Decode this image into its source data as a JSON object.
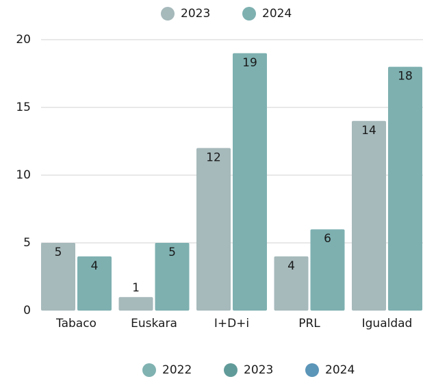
{
  "chart_data": {
    "type": "bar",
    "categories": [
      "Tabaco",
      "Euskara",
      "I+D+i",
      "PRL",
      "Igualdad"
    ],
    "series": [
      {
        "name": "2023",
        "color": "#a6b9bb",
        "values": [
          5,
          1,
          12,
          4,
          14
        ]
      },
      {
        "name": "2024",
        "color": "#7eb0b0",
        "values": [
          4,
          5,
          19,
          6,
          18
        ]
      }
    ],
    "legend2": [
      {
        "name": "2022",
        "color": "#80b2b1"
      },
      {
        "name": "2023",
        "color": "#619b99"
      },
      {
        "name": "2024",
        "color": "#5b95b8"
      }
    ],
    "ylim": [
      0,
      20
    ],
    "yticks": [
      0,
      5,
      10,
      15,
      20
    ],
    "grid": true
  }
}
